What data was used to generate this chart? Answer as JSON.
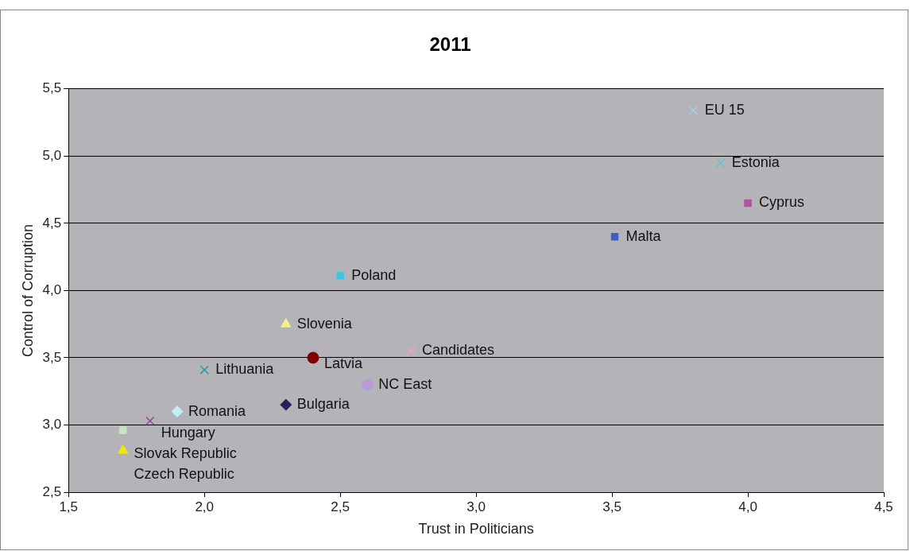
{
  "chart_data": {
    "type": "scatter",
    "title": "2011",
    "xlabel": "Trust in Politicians",
    "ylabel": "Control of Corruption",
    "xlim": [
      1.5,
      4.5
    ],
    "xticks": [
      {
        "value": 1.5,
        "label": "1,5"
      },
      {
        "value": 2,
        "label": "2,0"
      },
      {
        "value": 2.5,
        "label": "2,5"
      },
      {
        "value": 3,
        "label": "3,0"
      },
      {
        "value": 3.5,
        "label": "3,5"
      },
      {
        "value": 4,
        "label": "4,0"
      },
      {
        "value": 4.5,
        "label": "4,5"
      }
    ],
    "ylim": [
      2.5,
      5.5
    ],
    "yticks": [
      {
        "value": 2.5,
        "label": "2,5"
      },
      {
        "value": 3,
        "label": "3,0"
      },
      {
        "value": 3.5,
        "label": "3,5"
      },
      {
        "value": 4,
        "label": "4,0"
      },
      {
        "value": 4.5,
        "label": "4,5"
      },
      {
        "value": 5,
        "label": "5,0"
      },
      {
        "value": 5.5,
        "label": "5,5"
      }
    ],
    "grid": "y",
    "legend": false,
    "series": [
      {
        "name": "EU 15",
        "color": "#a6cbe6",
        "marker": "cross",
        "x": [
          3.8
        ],
        "values": [
          5.34
        ]
      },
      {
        "name": "Estonia",
        "color": "#5bc8d0",
        "marker": "cross",
        "x": [
          3.9
        ],
        "values": [
          4.95
        ]
      },
      {
        "name": "Cyprus",
        "color": "#b052a8",
        "marker": "square",
        "x": [
          4.0
        ],
        "values": [
          4.65
        ]
      },
      {
        "name": "Malta",
        "color": "#3d5fc4",
        "marker": "square",
        "x": [
          3.51
        ],
        "values": [
          4.4
        ]
      },
      {
        "name": "Poland",
        "color": "#3ec4e0",
        "marker": "square",
        "x": [
          2.5
        ],
        "values": [
          4.11
        ]
      },
      {
        "name": "Slovenia",
        "color": "#f3f08a",
        "marker": "triangle",
        "x": [
          2.3
        ],
        "values": [
          3.75
        ]
      },
      {
        "name": "Candidates",
        "color": "#f4a0c8",
        "marker": "cross",
        "x": [
          2.76
        ],
        "values": [
          3.55
        ]
      },
      {
        "name": "Latvia",
        "color": "#7f0000",
        "marker": "circle",
        "x": [
          2.4
        ],
        "values": [
          3.5
        ]
      },
      {
        "name": "Lithuania",
        "color": "#2a9a9a",
        "marker": "cross",
        "x": [
          2.0
        ],
        "values": [
          3.41
        ]
      },
      {
        "name": "NC East",
        "color": "#b79ad6",
        "marker": "circle",
        "x": [
          2.6
        ],
        "values": [
          3.3
        ]
      },
      {
        "name": "Bulgaria",
        "color": "#27215f",
        "marker": "diamond",
        "x": [
          2.3
        ],
        "values": [
          3.15
        ]
      },
      {
        "name": "Romania",
        "color": "#c8ecf4",
        "marker": "diamond",
        "x": [
          1.9
        ],
        "values": [
          3.1
        ]
      },
      {
        "name": "Hungary",
        "color": "#9b3fa8",
        "marker": "cross",
        "x": [
          1.8
        ],
        "values": [
          3.03
        ]
      },
      {
        "name": "Slovak Republic",
        "color": "#c6e4c2",
        "marker": "square",
        "x": [
          1.7
        ],
        "values": [
          2.96
        ]
      },
      {
        "name": "Czech Republic",
        "color": "#f0e800",
        "marker": "triangle",
        "x": [
          1.7
        ],
        "values": [
          2.81
        ]
      }
    ]
  }
}
